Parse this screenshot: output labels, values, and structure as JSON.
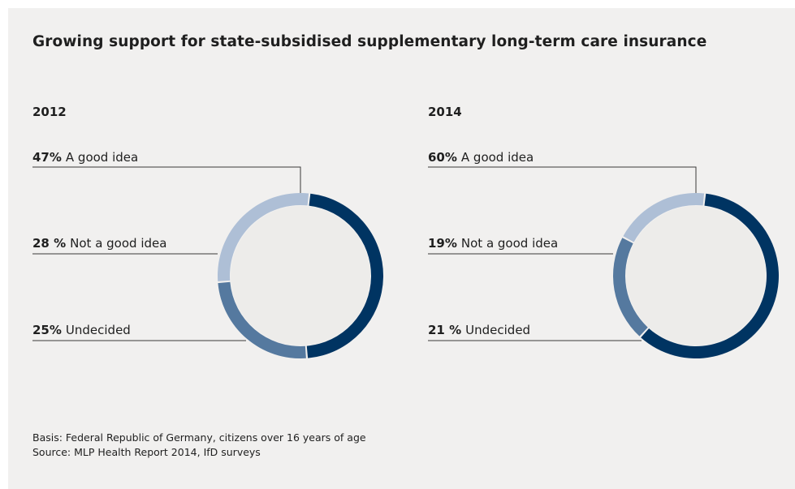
{
  "title": "Growing support for state-subsidised supplementary long-term care insurance",
  "chart_data": [
    {
      "type": "pie",
      "title": "2012",
      "slices": [
        {
          "label": "A good idea",
          "pct_text": "47%",
          "value": 47,
          "color": "#003462"
        },
        {
          "label": "Undecided",
          "pct_text": "25%",
          "value": 25,
          "color": "#55799f"
        },
        {
          "label": "Not a good idea",
          "pct_text": "28 %",
          "value": 28,
          "color": "#aebfd6"
        }
      ]
    },
    {
      "type": "pie",
      "title": "2014",
      "slices": [
        {
          "label": "A good idea",
          "pct_text": "60%",
          "value": 60,
          "color": "#003462"
        },
        {
          "label": "Undecided",
          "pct_text": "21 %",
          "value": 21,
          "color": "#55799f"
        },
        {
          "label": "Not a good idea",
          "pct_text": "19%",
          "value": 19,
          "color": "#aebfd6"
        }
      ]
    }
  ],
  "footer": {
    "basis": "Basis: Federal Republic of Germany, citizens over 16 years of age",
    "source": "Source: MLP Health Report 2014, IfD surveys"
  }
}
